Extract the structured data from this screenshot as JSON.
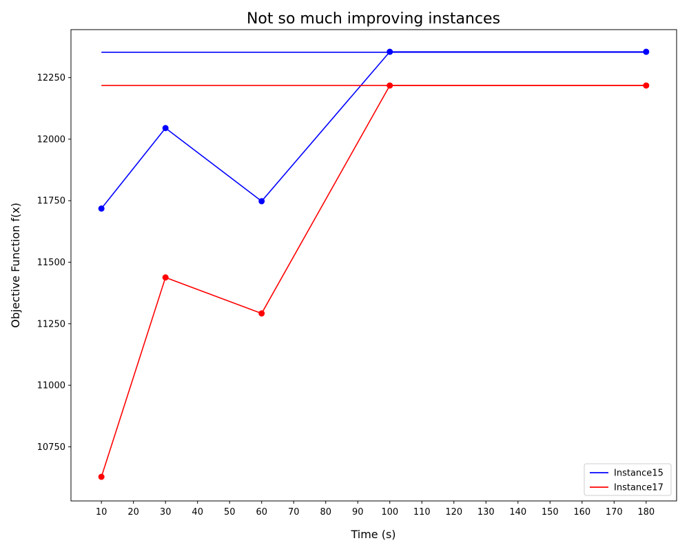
{
  "chart_data": {
    "type": "line",
    "title": "Not so much improving instances",
    "xlabel": "Time (s)",
    "ylabel": "Objective Function f(x)",
    "xlim": [
      0.5,
      189.5
    ],
    "ylim": [
      10530,
      12445
    ],
    "xticks": [
      10,
      20,
      30,
      40,
      50,
      60,
      70,
      80,
      90,
      100,
      110,
      120,
      130,
      140,
      150,
      160,
      170,
      180
    ],
    "yticks": [
      10750,
      11000,
      11250,
      11500,
      11750,
      12000,
      12250
    ],
    "grid": false,
    "legend_position": "lower-right",
    "series": [
      {
        "name": "Instance15",
        "color": "#0000ff",
        "x": [
          10,
          30,
          60,
          100,
          180
        ],
        "values": [
          11718,
          12045,
          11748,
          12355,
          12355
        ],
        "reference_line": {
          "x": [
            10,
            180
          ],
          "y": 12353
        }
      },
      {
        "name": "Instance17",
        "color": "#ff0000",
        "x": [
          10,
          30,
          60,
          100,
          180
        ],
        "values": [
          10628,
          11438,
          11292,
          12218,
          12218
        ],
        "reference_line": {
          "x": [
            10,
            180
          ],
          "y": 12218
        }
      }
    ]
  }
}
